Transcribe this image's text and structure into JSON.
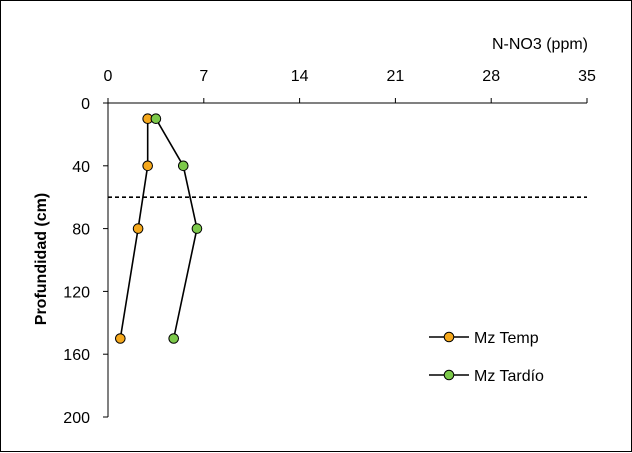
{
  "chart_data": {
    "type": "line",
    "orientation": "depth-profile",
    "title": "N-NO3 (ppm)",
    "xlabel": "N-NO3 (ppm)",
    "ylabel": "Profundidad (cm)",
    "xlim": [
      0,
      35
    ],
    "ylim": [
      0,
      200
    ],
    "y_inverted": true,
    "x_ticks": [
      "0",
      "7",
      "14",
      "21",
      "28",
      "35"
    ],
    "y_ticks": [
      "0",
      "40",
      "80",
      "120",
      "160",
      "200"
    ],
    "x_axis_position": "top",
    "grid": false,
    "reference_line": {
      "style": "dashed",
      "depth": 60
    },
    "legend_position": "bottom-right",
    "series": [
      {
        "name": "Mz Temp",
        "color": "#F5A81C",
        "points": [
          {
            "x": 2.9,
            "y": 10
          },
          {
            "x": 2.9,
            "y": 40
          },
          {
            "x": 2.2,
            "y": 80
          },
          {
            "x": 0.9,
            "y": 150
          }
        ]
      },
      {
        "name": "Mz Tardío",
        "color": "#7CC94A",
        "points": [
          {
            "x": 3.5,
            "y": 10
          },
          {
            "x": 5.5,
            "y": 40
          },
          {
            "x": 6.5,
            "y": 80
          },
          {
            "x": 4.8,
            "y": 150
          }
        ]
      }
    ]
  }
}
